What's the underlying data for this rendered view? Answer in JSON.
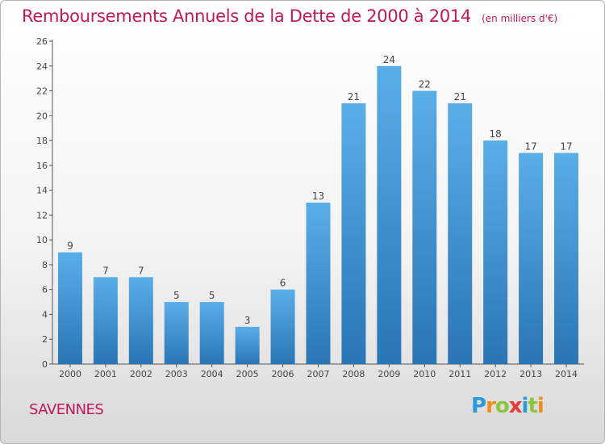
{
  "header": {
    "title": "Remboursements Annuels de la Dette de 2000 à 2014",
    "unit": "(en milliers d'€)"
  },
  "footer": {
    "town": "SAVENNES",
    "brand_letters": [
      "P",
      "r",
      "o",
      "x",
      "i",
      "t",
      "i"
    ],
    "brand_colors": [
      "#2a9bd6",
      "#f08c1e",
      "#8cc63f",
      "#e53935",
      "#2a9bd6",
      "#8cc63f",
      "#f08c1e"
    ]
  },
  "colors": {
    "title": "#c2185b",
    "bar_top": "#5aaee8",
    "bar_bottom": "#2a75b5"
  },
  "chart_data": {
    "type": "bar",
    "title": "Remboursements Annuels de la Dette de 2000 à 2014",
    "subtitle": "(en milliers d'€)",
    "xlabel": "",
    "ylabel": "",
    "categories": [
      "2000",
      "2001",
      "2002",
      "2003",
      "2004",
      "2005",
      "2006",
      "2007",
      "2008",
      "2009",
      "2010",
      "2011",
      "2012",
      "2013",
      "2014"
    ],
    "values": [
      9,
      7,
      7,
      5,
      5,
      3,
      6,
      13,
      21,
      24,
      22,
      21,
      18,
      17,
      17
    ],
    "ylim": [
      0,
      26
    ],
    "yticks": [
      0,
      2,
      4,
      6,
      8,
      10,
      12,
      14,
      16,
      18,
      20,
      22,
      24,
      26
    ],
    "grid": false,
    "legend": "none"
  }
}
